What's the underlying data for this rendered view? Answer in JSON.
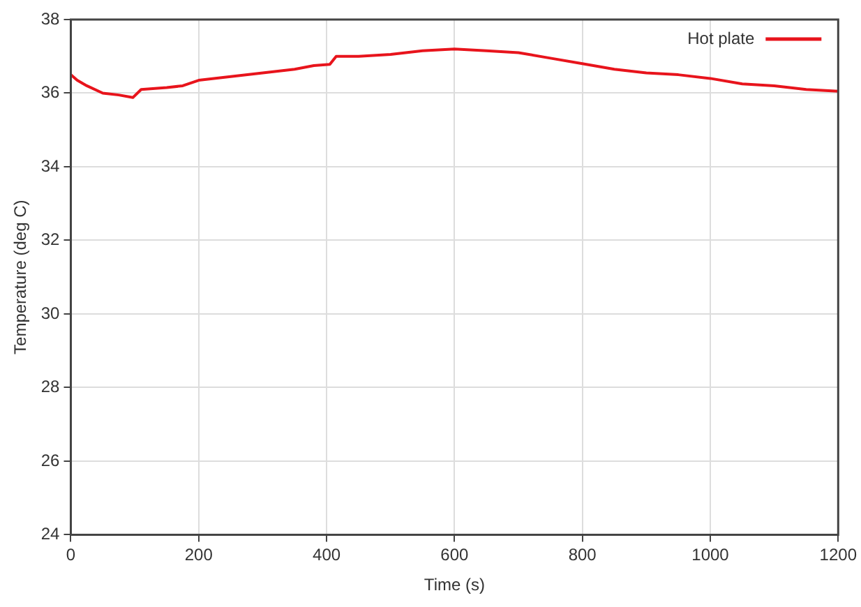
{
  "chart_data": {
    "type": "line",
    "xlabel": "Time (s)",
    "ylabel": "Temperature (deg C)",
    "xlim": [
      0,
      1200
    ],
    "xticks": [
      0,
      200,
      400,
      600,
      800,
      1000,
      1200
    ],
    "ylim": [
      24,
      38
    ],
    "yticks": [
      24,
      26,
      28,
      30,
      32,
      34,
      36,
      38
    ],
    "grid": true,
    "legend": "top right",
    "marker": "none",
    "line_style": "solid",
    "series": [
      {
        "name": "Hot plate",
        "color": "#e8141c",
        "x": [
          0,
          10,
          25,
          50,
          75,
          97,
          110,
          150,
          175,
          200,
          250,
          300,
          350,
          380,
          405,
          415,
          450,
          500,
          550,
          600,
          650,
          700,
          750,
          800,
          850,
          900,
          950,
          1000,
          1050,
          1100,
          1150,
          1200
        ],
        "values": [
          36.5,
          36.35,
          36.2,
          36.0,
          35.95,
          35.88,
          36.1,
          36.15,
          36.2,
          36.35,
          36.45,
          36.55,
          36.65,
          36.75,
          36.78,
          37.0,
          37.0,
          37.05,
          37.15,
          37.2,
          37.15,
          37.1,
          36.95,
          36.8,
          36.65,
          36.55,
          36.5,
          36.4,
          36.25,
          36.2,
          36.1,
          36.05
        ]
      }
    ]
  }
}
